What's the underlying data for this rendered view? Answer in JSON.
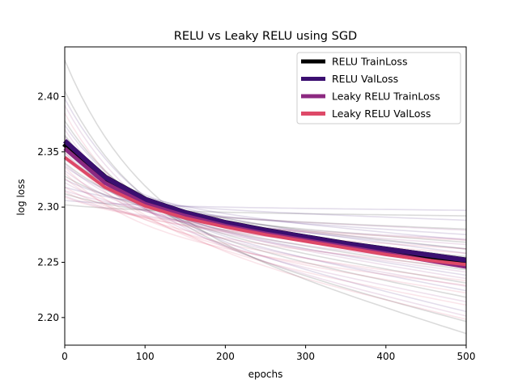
{
  "chart_data": {
    "type": "line",
    "title": "RELU vs Leaky RELU using SGD",
    "xlabel": "epochs",
    "ylabel": "log loss",
    "xlim": [
      0,
      500
    ],
    "ylim": [
      2.175,
      2.445
    ],
    "xticks": [
      0,
      100,
      200,
      300,
      400,
      500
    ],
    "yticks": [
      2.2,
      2.25,
      2.3,
      2.35,
      2.4
    ],
    "ytick_labels": [
      "2.20",
      "2.25",
      "2.30",
      "2.35",
      "2.40"
    ],
    "grid": false,
    "legend_position": "top-right",
    "series": [
      {
        "name": "RELU TrainLoss",
        "color": "#000000",
        "x": [
          0,
          50,
          100,
          150,
          200,
          250,
          300,
          350,
          400,
          450,
          500
        ],
        "y": [
          2.358,
          2.326,
          2.306,
          2.294,
          2.285,
          2.278,
          2.272,
          2.266,
          2.261,
          2.256,
          2.251
        ]
      },
      {
        "name": "RELU ValLoss",
        "color": "#3b0f70",
        "x": [
          0,
          50,
          100,
          150,
          200,
          250,
          300,
          350,
          400,
          450,
          500
        ],
        "y": [
          2.36,
          2.327,
          2.307,
          2.295,
          2.286,
          2.279,
          2.273,
          2.267,
          2.262,
          2.257,
          2.252
        ]
      },
      {
        "name": "Leaky RELU TrainLoss",
        "color": "#8c2981",
        "x": [
          0,
          50,
          100,
          150,
          200,
          250,
          300,
          350,
          400,
          450,
          500
        ],
        "y": [
          2.353,
          2.322,
          2.303,
          2.292,
          2.283,
          2.276,
          2.27,
          2.264,
          2.258,
          2.252,
          2.246
        ]
      },
      {
        "name": "Leaky RELU ValLoss",
        "color": "#de4968",
        "x": [
          0,
          50,
          100,
          150,
          200,
          250,
          300,
          350,
          400,
          450,
          500
        ],
        "y": [
          2.345,
          2.318,
          2.301,
          2.29,
          2.282,
          2.275,
          2.269,
          2.263,
          2.257,
          2.252,
          2.248
        ]
      }
    ],
    "individual_runs": [
      {
        "color": "#000000",
        "y0": 2.433,
        "y500": 2.185
      },
      {
        "color": "#000000",
        "y0": 2.405,
        "y500": 2.196
      },
      {
        "color": "#000000",
        "y0": 2.378,
        "y500": 2.218
      },
      {
        "color": "#000000",
        "y0": 2.365,
        "y500": 2.231
      },
      {
        "color": "#000000",
        "y0": 2.352,
        "y500": 2.243
      },
      {
        "color": "#000000",
        "y0": 2.34,
        "y500": 2.255
      },
      {
        "color": "#000000",
        "y0": 2.328,
        "y500": 2.268
      },
      {
        "color": "#000000",
        "y0": 2.312,
        "y500": 2.28
      },
      {
        "color": "#000000",
        "y0": 2.302,
        "y500": 2.292
      },
      {
        "color": "#000000",
        "y0": 2.346,
        "y500": 2.262
      },
      {
        "color": "#3b0f70",
        "y0": 2.398,
        "y500": 2.205
      },
      {
        "color": "#3b0f70",
        "y0": 2.374,
        "y500": 2.224
      },
      {
        "color": "#3b0f70",
        "y0": 2.36,
        "y500": 2.238
      },
      {
        "color": "#3b0f70",
        "y0": 2.349,
        "y500": 2.25
      },
      {
        "color": "#3b0f70",
        "y0": 2.337,
        "y500": 2.262
      },
      {
        "color": "#3b0f70",
        "y0": 2.325,
        "y500": 2.275
      },
      {
        "color": "#3b0f70",
        "y0": 2.318,
        "y500": 2.288
      },
      {
        "color": "#3b0f70",
        "y0": 2.306,
        "y500": 2.297
      },
      {
        "color": "#3b0f70",
        "y0": 2.356,
        "y500": 2.258
      },
      {
        "color": "#3b0f70",
        "y0": 2.343,
        "y500": 2.27
      },
      {
        "color": "#8c2981",
        "y0": 2.392,
        "y500": 2.201
      },
      {
        "color": "#8c2981",
        "y0": 2.37,
        "y500": 2.214
      },
      {
        "color": "#8c2981",
        "y0": 2.358,
        "y500": 2.228
      },
      {
        "color": "#8c2981",
        "y0": 2.347,
        "y500": 2.241
      },
      {
        "color": "#8c2981",
        "y0": 2.333,
        "y500": 2.253
      },
      {
        "color": "#8c2981",
        "y0": 2.322,
        "y500": 2.266
      },
      {
        "color": "#8c2981",
        "y0": 2.315,
        "y500": 2.279
      },
      {
        "color": "#8c2981",
        "y0": 2.339,
        "y500": 2.247
      },
      {
        "color": "#8c2981",
        "y0": 2.364,
        "y500": 2.235
      },
      {
        "color": "#8c2981",
        "y0": 2.31,
        "y500": 2.271
      },
      {
        "color": "#de4968",
        "y0": 2.385,
        "y500": 2.198
      },
      {
        "color": "#de4968",
        "y0": 2.362,
        "y500": 2.211
      },
      {
        "color": "#de4968",
        "y0": 2.35,
        "y500": 2.222
      },
      {
        "color": "#de4968",
        "y0": 2.336,
        "y500": 2.233
      },
      {
        "color": "#de4968",
        "y0": 2.326,
        "y500": 2.245
      },
      {
        "color": "#de4968",
        "y0": 2.318,
        "y500": 2.258
      },
      {
        "color": "#de4968",
        "y0": 2.309,
        "y500": 2.27
      },
      {
        "color": "#de4968",
        "y0": 2.331,
        "y500": 2.229
      },
      {
        "color": "#de4968",
        "y0": 2.344,
        "y500": 2.252
      },
      {
        "color": "#de4968",
        "y0": 2.314,
        "y500": 2.262
      }
    ]
  }
}
